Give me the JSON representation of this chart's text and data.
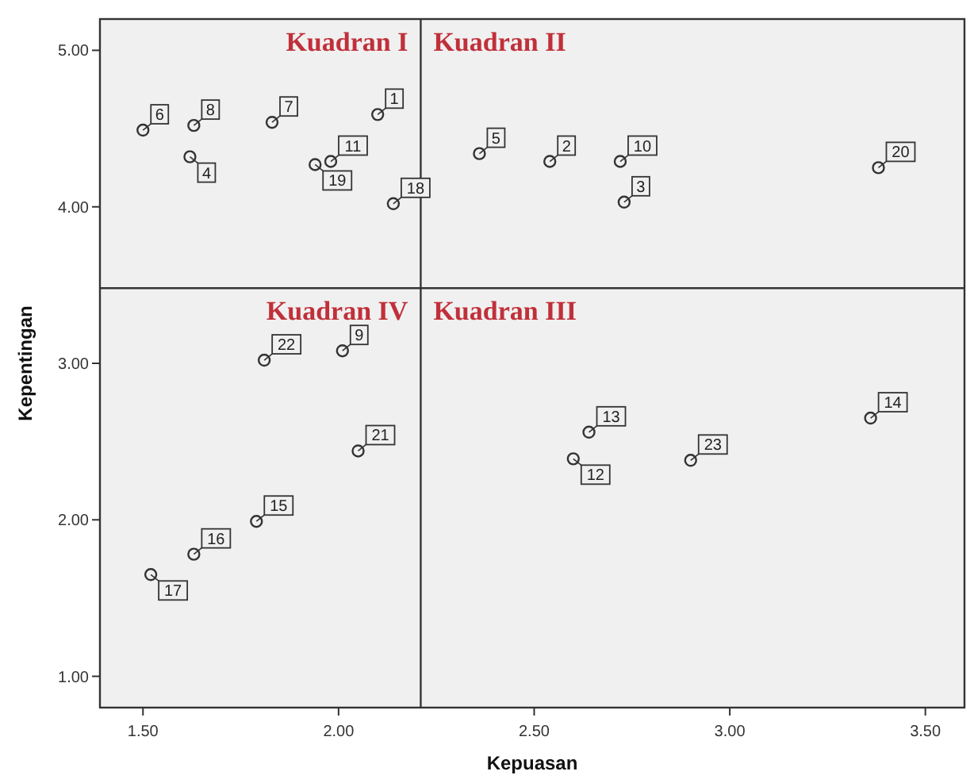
{
  "chart_data": {
    "type": "scatter",
    "xlabel": "Kepuasan",
    "ylabel": "Kepentingan",
    "xlim": [
      1.39,
      3.6
    ],
    "ylim": [
      0.8,
      5.2
    ],
    "xticks": [
      {
        "value": 1.5,
        "label": "1.50"
      },
      {
        "value": 2,
        "label": "2.00"
      },
      {
        "value": 2.5,
        "label": "2.50"
      },
      {
        "value": 3,
        "label": "3.00"
      },
      {
        "value": 3.5,
        "label": "3.50"
      }
    ],
    "yticks": [
      {
        "value": 1,
        "label": "1.00"
      },
      {
        "value": 2,
        "label": "2.00"
      },
      {
        "value": 3,
        "label": "3.00"
      },
      {
        "value": 4,
        "label": "4.00"
      },
      {
        "value": 5,
        "label": "5.00"
      }
    ],
    "marker": "circle",
    "grid": false,
    "series": [
      {
        "color": "#333333",
        "x": [
          1.5,
          1.63,
          1.62,
          1.83,
          1.94,
          1.98,
          2.1,
          2.14,
          2.36,
          2.54,
          2.72,
          2.73,
          3.38,
          1.81,
          2.01,
          2.05,
          1.79,
          1.63,
          1.52,
          2.64,
          2.6,
          2.9,
          3.36
        ],
        "values": [
          4.49,
          4.52,
          4.32,
          4.54,
          4.27,
          4.29,
          4.59,
          4.02,
          4.34,
          4.29,
          4.29,
          4.03,
          4.25,
          3.02,
          3.08,
          2.44,
          1.99,
          1.78,
          1.65,
          2.56,
          2.39,
          2.38,
          2.65
        ]
      }
    ],
    "ref_lines": [
      {
        "axis": "x",
        "value": 2.21,
        "color": "#333333"
      },
      {
        "axis": "y",
        "value": 3.48,
        "color": "#333333"
      }
    ],
    "annotations": [
      "Kuadran I",
      "Kuadran II",
      "Kuadran III",
      "Kuadran IV",
      {
        "text": "6",
        "x": 1.5,
        "y": 4.49
      },
      {
        "text": "8",
        "x": 1.63,
        "y": 4.52
      },
      {
        "text": "4",
        "x": 1.62,
        "y": 4.32
      },
      {
        "text": "7",
        "x": 1.83,
        "y": 4.54
      },
      {
        "text": "19",
        "x": 1.94,
        "y": 4.27
      },
      {
        "text": "11",
        "x": 1.98,
        "y": 4.29
      },
      {
        "text": "1",
        "x": 2.1,
        "y": 4.59
      },
      {
        "text": "18",
        "x": 2.14,
        "y": 4.02
      },
      {
        "text": "5",
        "x": 2.36,
        "y": 4.34
      },
      {
        "text": "2",
        "x": 2.54,
        "y": 4.29
      },
      {
        "text": "10",
        "x": 2.72,
        "y": 4.29
      },
      {
        "text": "3",
        "x": 2.73,
        "y": 4.03
      },
      {
        "text": "20",
        "x": 3.38,
        "y": 4.25
      },
      {
        "text": "22",
        "x": 1.81,
        "y": 3.02
      },
      {
        "text": "9",
        "x": 2.01,
        "y": 3.08
      },
      {
        "text": "21",
        "x": 2.05,
        "y": 2.44
      },
      {
        "text": "15",
        "x": 1.79,
        "y": 1.99
      },
      {
        "text": "16",
        "x": 1.63,
        "y": 1.78
      },
      {
        "text": "17",
        "x": 1.52,
        "y": 1.65
      },
      {
        "text": "13",
        "x": 2.64,
        "y": 2.56
      },
      {
        "text": "12",
        "x": 2.6,
        "y": 2.39
      },
      {
        "text": "23",
        "x": 2.9,
        "y": 2.38
      },
      {
        "text": "14",
        "x": 3.36,
        "y": 2.65
      }
    ]
  }
}
